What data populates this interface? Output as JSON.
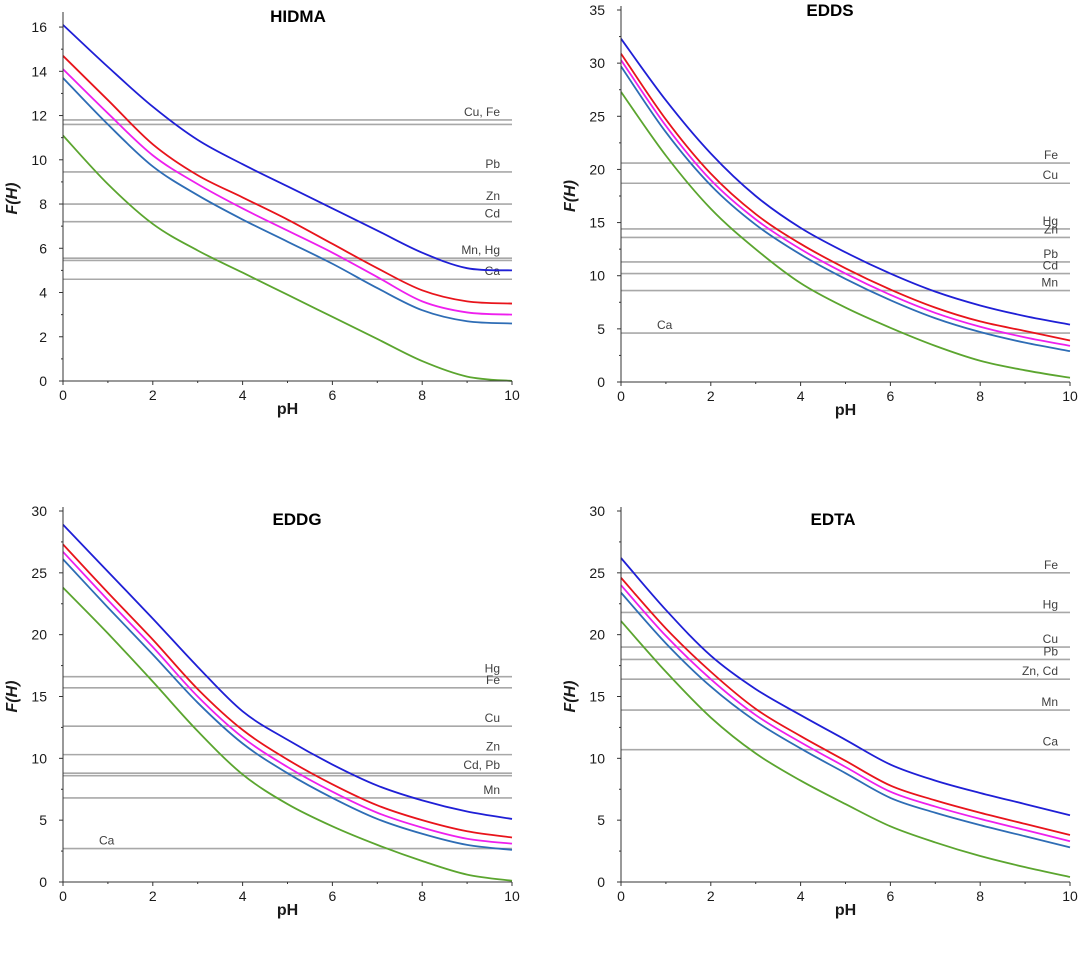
{
  "colors": {
    "series_blue": "#1f1fd6",
    "series_red": "#e8141b",
    "series_magenta": "#ee1fee",
    "series_steelblue": "#2e6db5",
    "series_green": "#5ba52f",
    "reference": "#a8a8a8",
    "axis": "#333333"
  },
  "chart_data": [
    {
      "type": "line",
      "title": "HIDMA",
      "xlabel": "pH",
      "ylabel": "F(H)",
      "xlim": [
        0,
        10
      ],
      "ylim": [
        0,
        16.5
      ],
      "xticks": [
        0,
        2,
        4,
        6,
        8,
        10
      ],
      "yticks": [
        0,
        2,
        4,
        6,
        8,
        10,
        12,
        14,
        16
      ],
      "x": [
        0,
        1,
        2,
        3,
        4,
        5,
        6,
        7,
        8,
        9,
        10
      ],
      "series": [
        {
          "name": "blue",
          "values": [
            16.1,
            14.2,
            12.4,
            10.9,
            9.8,
            8.8,
            7.8,
            6.8,
            5.8,
            5.1,
            5.0
          ]
        },
        {
          "name": "red",
          "values": [
            14.7,
            12.7,
            10.7,
            9.3,
            8.3,
            7.3,
            6.2,
            5.1,
            4.1,
            3.6,
            3.5
          ]
        },
        {
          "name": "magenta",
          "values": [
            14.1,
            12.1,
            10.2,
            8.9,
            7.8,
            6.8,
            5.8,
            4.7,
            3.6,
            3.1,
            3.0
          ]
        },
        {
          "name": "steelblue",
          "values": [
            13.7,
            11.6,
            9.7,
            8.4,
            7.3,
            6.3,
            5.3,
            4.2,
            3.2,
            2.7,
            2.6
          ]
        },
        {
          "name": "green",
          "values": [
            11.1,
            8.9,
            7.1,
            5.9,
            4.9,
            3.9,
            2.9,
            1.9,
            0.9,
            0.2,
            0.0
          ]
        }
      ],
      "reference_lines": [
        {
          "label": "Cu, Fe",
          "values": [
            11.8,
            11.6
          ]
        },
        {
          "label": "Pb",
          "values": [
            9.45
          ]
        },
        {
          "label": "Zn",
          "values": [
            8.0
          ]
        },
        {
          "label": "Cd",
          "values": [
            7.2
          ]
        },
        {
          "label": "Mn, Hg",
          "values": [
            5.55,
            5.45
          ]
        },
        {
          "label": "Ca",
          "values": [
            4.6
          ]
        }
      ]
    },
    {
      "type": "line",
      "title": "EDDS",
      "xlabel": "pH",
      "ylabel": "F(H)",
      "xlim": [
        0,
        10
      ],
      "ylim": [
        0,
        35
      ],
      "xticks": [
        0,
        2,
        4,
        6,
        8,
        10
      ],
      "yticks": [
        0,
        5,
        10,
        15,
        20,
        25,
        30,
        35
      ],
      "x": [
        0,
        1,
        2,
        3,
        4,
        5,
        6,
        7,
        8,
        9,
        10
      ],
      "series": [
        {
          "name": "blue",
          "values": [
            32.3,
            26.5,
            21.5,
            17.5,
            14.5,
            12.2,
            10.2,
            8.5,
            7.2,
            6.2,
            5.4
          ]
        },
        {
          "name": "red",
          "values": [
            30.9,
            24.7,
            19.6,
            15.8,
            13.0,
            10.7,
            8.7,
            7.0,
            5.7,
            4.8,
            3.9
          ]
        },
        {
          "name": "magenta",
          "values": [
            30.3,
            24.1,
            19.0,
            15.3,
            12.5,
            10.2,
            8.2,
            6.5,
            5.2,
            4.2,
            3.4
          ]
        },
        {
          "name": "steelblue",
          "values": [
            29.7,
            23.5,
            18.5,
            14.8,
            12.0,
            9.7,
            7.7,
            6.0,
            4.7,
            3.7,
            2.9
          ]
        },
        {
          "name": "green",
          "values": [
            27.3,
            21.3,
            16.3,
            12.5,
            9.3,
            7.0,
            5.1,
            3.4,
            2.0,
            1.1,
            0.4
          ]
        }
      ],
      "reference_lines": [
        {
          "label": "Fe",
          "values": [
            20.6
          ]
        },
        {
          "label": "Cu",
          "values": [
            18.7
          ]
        },
        {
          "label": "Hg",
          "values": [
            14.4
          ]
        },
        {
          "label": "Zn",
          "values": [
            13.6
          ]
        },
        {
          "label": "Pb",
          "values": [
            11.3
          ]
        },
        {
          "label": "Cd",
          "values": [
            10.2
          ]
        },
        {
          "label": "Mn",
          "values": [
            8.6
          ]
        },
        {
          "label": "Ca",
          "values": [
            4.6
          ]
        }
      ]
    },
    {
      "type": "line",
      "title": "EDDG",
      "xlabel": "pH",
      "ylabel": "F(H)",
      "xlim": [
        0,
        10
      ],
      "ylim": [
        0,
        30
      ],
      "xticks": [
        0,
        2,
        4,
        6,
        8,
        10
      ],
      "yticks": [
        0,
        5,
        10,
        15,
        20,
        25,
        30
      ],
      "x": [
        0,
        1,
        2,
        3,
        4,
        5,
        6,
        7,
        8,
        9,
        10
      ],
      "series": [
        {
          "name": "blue",
          "values": [
            28.9,
            25.1,
            21.3,
            17.4,
            13.8,
            11.5,
            9.5,
            7.8,
            6.6,
            5.7,
            5.1
          ]
        },
        {
          "name": "red",
          "values": [
            27.3,
            23.4,
            19.6,
            15.6,
            12.3,
            9.9,
            7.9,
            6.2,
            5.0,
            4.1,
            3.6
          ]
        },
        {
          "name": "magenta",
          "values": [
            26.7,
            22.8,
            19.0,
            15.0,
            11.7,
            9.3,
            7.3,
            5.6,
            4.4,
            3.5,
            3.1
          ]
        },
        {
          "name": "steelblue",
          "values": [
            26.1,
            22.2,
            18.4,
            14.5,
            11.2,
            8.8,
            6.8,
            5.1,
            3.9,
            3.0,
            2.6
          ]
        },
        {
          "name": "green",
          "values": [
            23.8,
            20.1,
            16.2,
            12.2,
            8.7,
            6.3,
            4.5,
            3.0,
            1.7,
            0.6,
            0.1
          ]
        }
      ],
      "reference_lines": [
        {
          "label": "Hg",
          "values": [
            16.6
          ]
        },
        {
          "label": "Fe",
          "values": [
            15.7
          ]
        },
        {
          "label": "Cu",
          "values": [
            12.6
          ]
        },
        {
          "label": "Zn",
          "values": [
            10.3
          ]
        },
        {
          "label": "Cd, Pb",
          "values": [
            8.8,
            8.6
          ]
        },
        {
          "label": "Mn",
          "values": [
            6.8
          ]
        },
        {
          "label": "Ca",
          "values": [
            2.7
          ]
        }
      ]
    },
    {
      "type": "line",
      "title": "EDTA",
      "xlabel": "pH",
      "ylabel": "F(H)",
      "xlim": [
        0,
        10
      ],
      "ylim": [
        0,
        30
      ],
      "xticks": [
        0,
        2,
        4,
        6,
        8,
        10
      ],
      "yticks": [
        0,
        5,
        10,
        15,
        20,
        25,
        30
      ],
      "x": [
        0,
        1,
        2,
        3,
        4,
        5,
        6,
        7,
        8,
        9,
        10
      ],
      "series": [
        {
          "name": "blue",
          "values": [
            26.2,
            22.0,
            18.3,
            15.6,
            13.5,
            11.5,
            9.5,
            8.2,
            7.2,
            6.3,
            5.4
          ]
        },
        {
          "name": "red",
          "values": [
            24.6,
            20.5,
            17.0,
            14.0,
            11.8,
            9.8,
            7.8,
            6.6,
            5.6,
            4.7,
            3.8
          ]
        },
        {
          "name": "magenta",
          "values": [
            24.0,
            19.9,
            16.4,
            13.5,
            11.3,
            9.3,
            7.3,
            6.1,
            5.1,
            4.2,
            3.3
          ]
        },
        {
          "name": "steelblue",
          "values": [
            23.4,
            19.3,
            15.8,
            13.0,
            10.8,
            8.8,
            6.8,
            5.6,
            4.6,
            3.7,
            2.8
          ]
        },
        {
          "name": "green",
          "values": [
            21.1,
            17.0,
            13.3,
            10.4,
            8.2,
            6.3,
            4.5,
            3.2,
            2.1,
            1.2,
            0.4
          ]
        }
      ],
      "reference_lines": [
        {
          "label": "Fe",
          "values": [
            25.0
          ]
        },
        {
          "label": "Hg",
          "values": [
            21.8
          ]
        },
        {
          "label": "Cu",
          "values": [
            19.0
          ]
        },
        {
          "label": "Pb",
          "values": [
            18.0
          ]
        },
        {
          "label": "Zn, Cd",
          "values": [
            16.4
          ]
        },
        {
          "label": "Mn",
          "values": [
            13.9
          ]
        },
        {
          "label": "Ca",
          "values": [
            10.7
          ]
        }
      ]
    }
  ]
}
